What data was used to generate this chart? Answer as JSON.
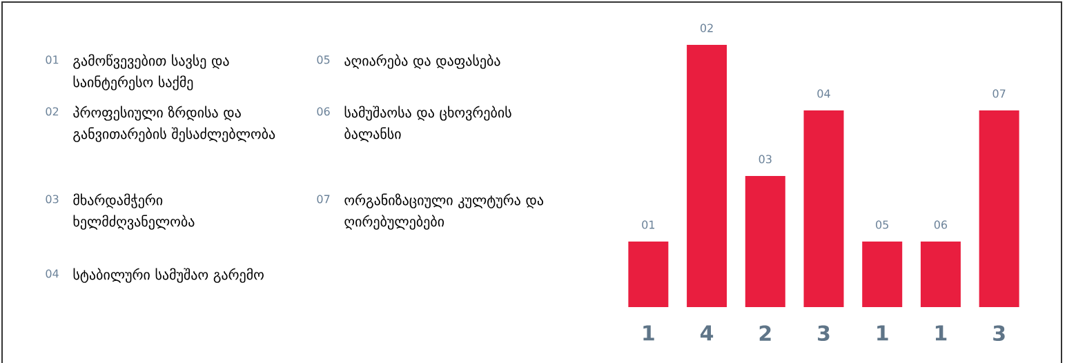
{
  "chart_data": {
    "type": "bar",
    "categories": [
      "01",
      "02",
      "03",
      "04",
      "05",
      "06",
      "07"
    ],
    "values": [
      1,
      4,
      2,
      3,
      1,
      1,
      3
    ],
    "color": "#e91e3f",
    "data_labels": true,
    "annotations": [
      "გამოწვევებით სავსე და საინტერესო საქმე",
      "პროფესიული ზრდისა და განვითარების შესაძლებლობა",
      "მხარდამჭერი ხელმძღვანელობა",
      "სტაბილური სამუშაო გარემო",
      "აღიარება და დაფასება",
      "სამუშაოსა და ცხოვრების ბალანსი",
      "ორგანიზაციული კულტურა და ღირებულებები"
    ]
  }
}
